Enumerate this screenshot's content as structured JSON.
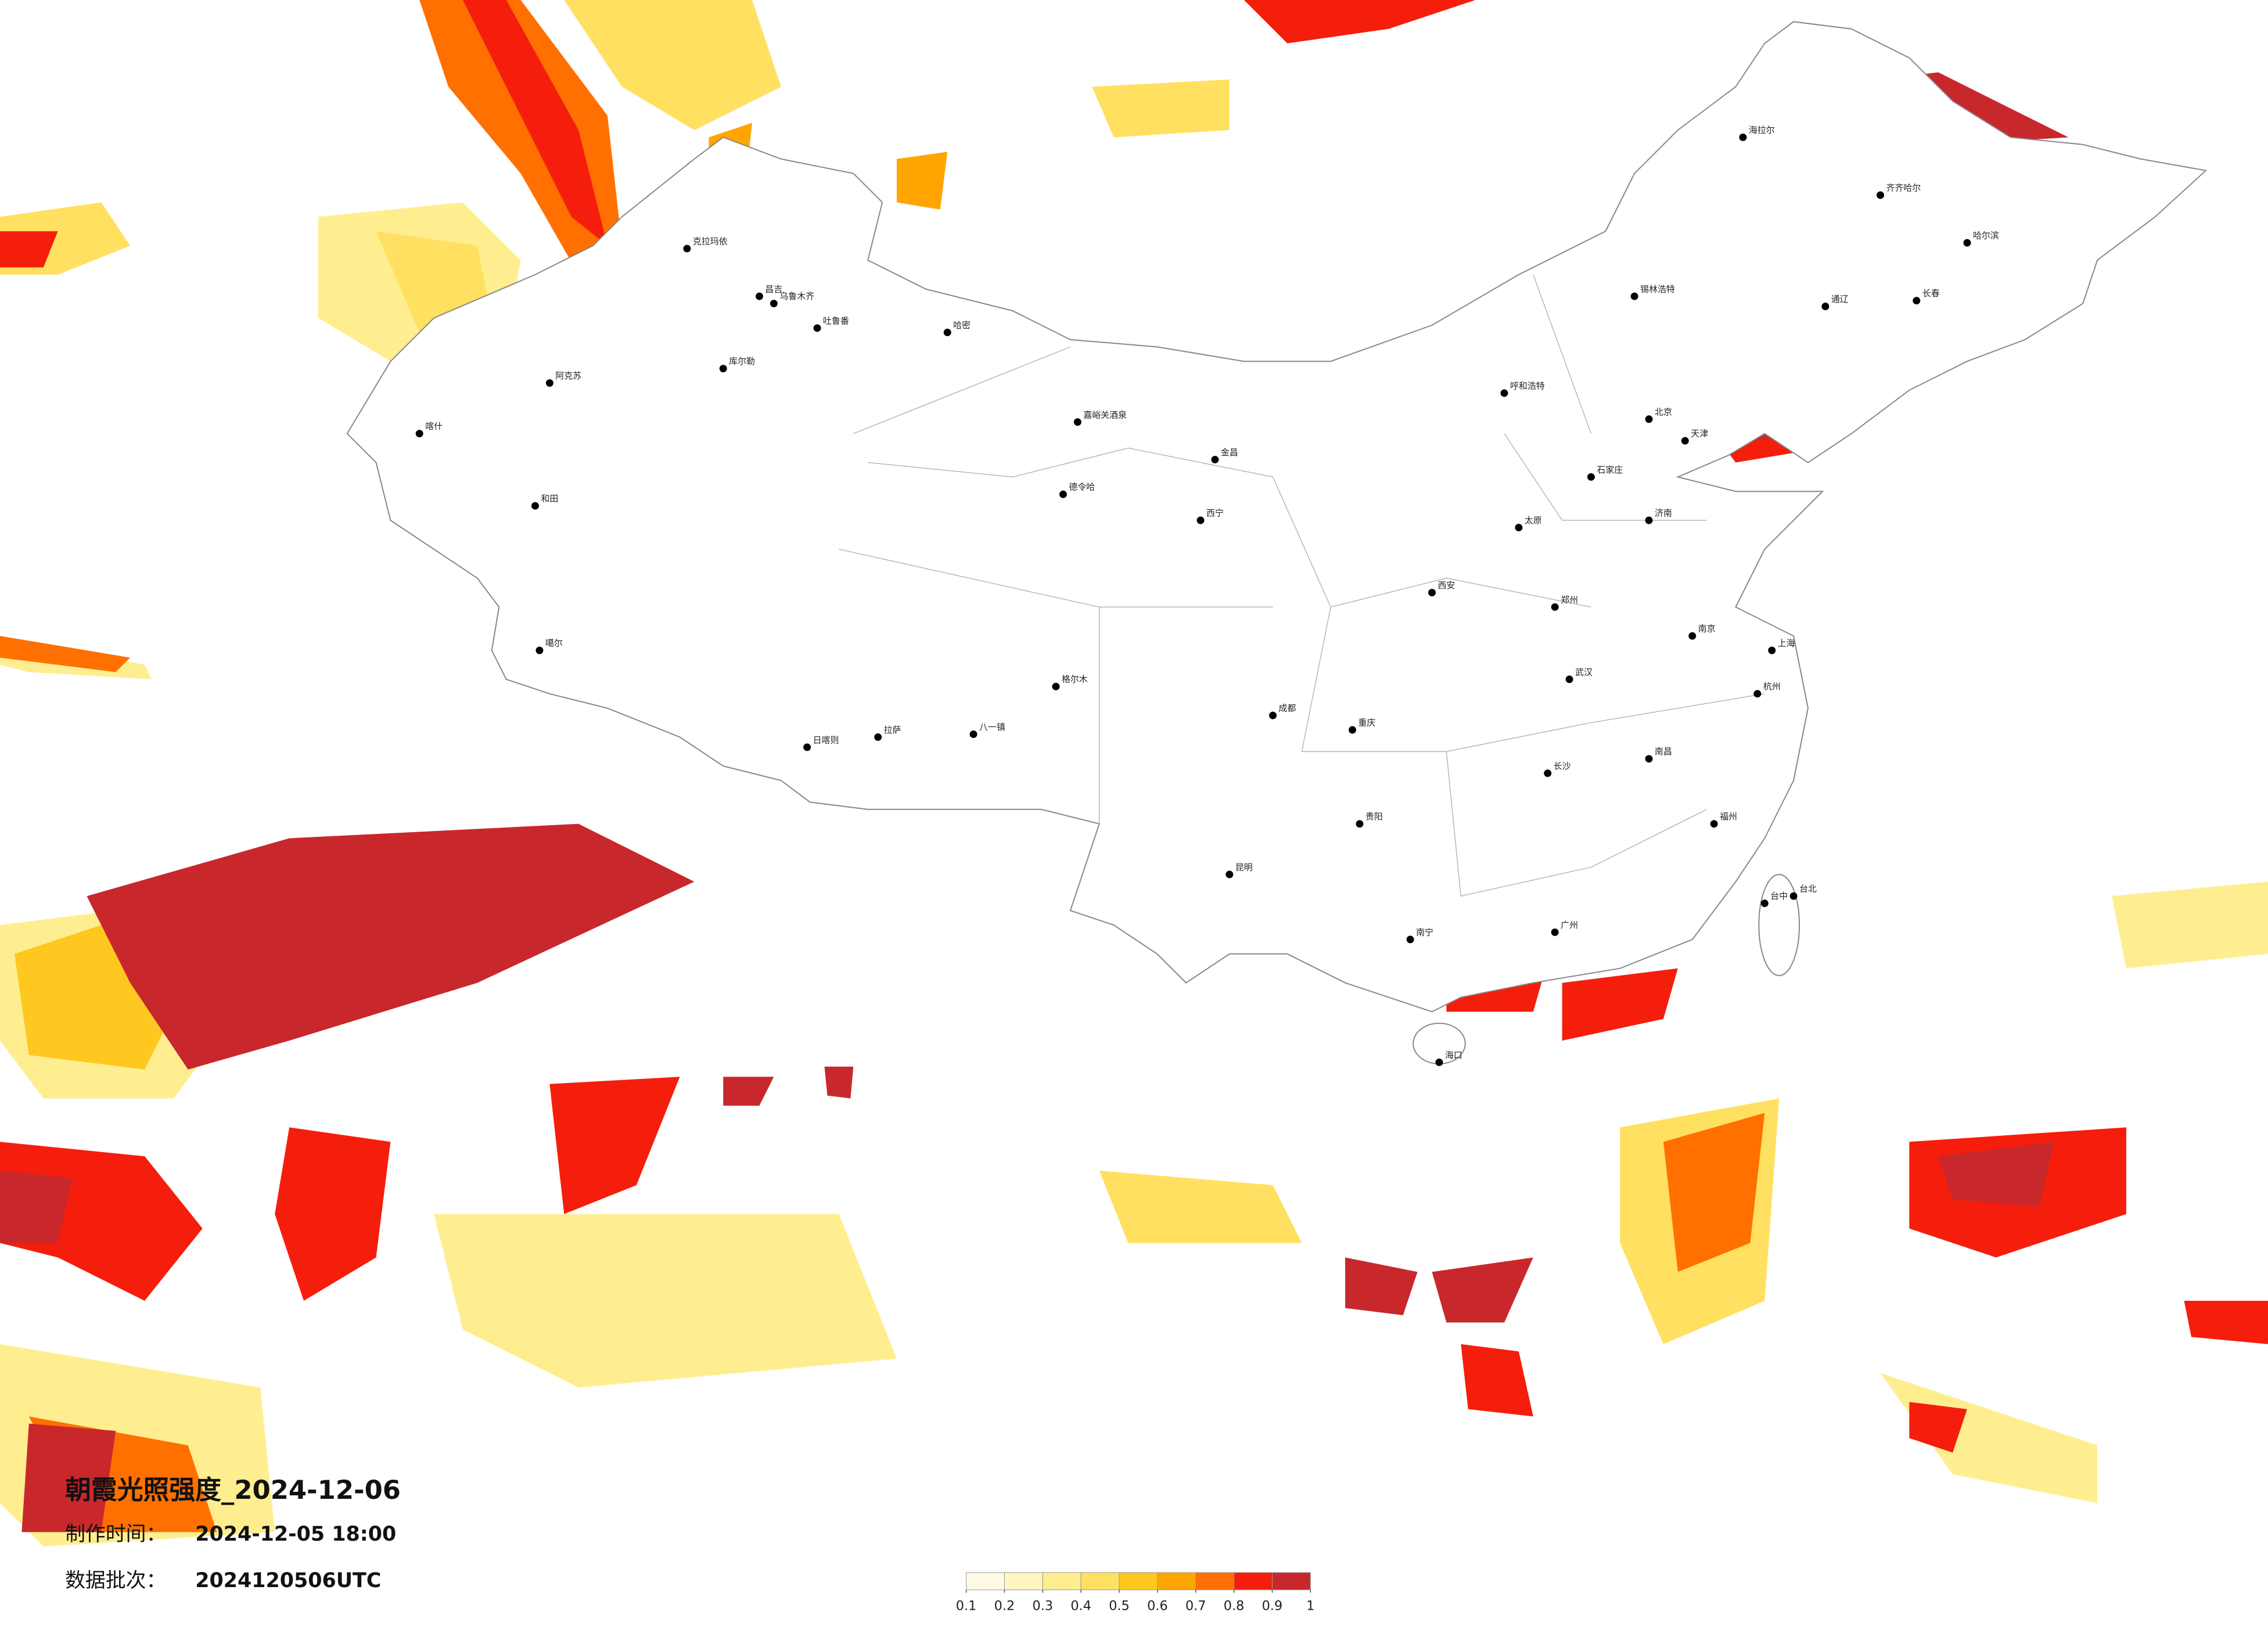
{
  "title": "朝霞光照强度_2024-12-06",
  "production_time_label": "制作时间：",
  "production_time": "2024-12-05 18:00",
  "batch_label": "数据批次：",
  "batch": "2024120506UTC",
  "legend": {
    "colors": [
      "#fffbe6",
      "#fff6c0",
      "#ffee90",
      "#ffe060",
      "#ffc820",
      "#ffa500",
      "#ff7000",
      "#f51e0c",
      "#c8282c"
    ],
    "ticks": [
      0.1,
      0.2,
      0.3,
      0.4,
      0.5,
      0.6,
      0.7,
      0.8,
      0.9,
      1
    ]
  },
  "cities": [
    "克拉玛依",
    "昌吉",
    "乌鲁木齐",
    "吐鲁番",
    "哈密",
    "库尔勒",
    "阿克苏",
    "喀什",
    "和田",
    "噶尔",
    "日喀则",
    "拉萨",
    "八一镇",
    "格尔木",
    "德令哈",
    "嘉峪关酒泉",
    "金昌",
    "西宁",
    "海拉尔",
    "齐齐哈尔",
    "哈尔滨",
    "长春",
    "通辽",
    "锡林浩特",
    "呼和浩特",
    "北京",
    "天津",
    "石家庄",
    "太原",
    "郑州",
    "西安",
    "成都",
    "重庆",
    "贵阳",
    "昆明",
    "南宁",
    "广州",
    "福州",
    "南昌",
    "长沙",
    "武汉",
    "南京",
    "上海",
    "杭州",
    "济南",
    "台北",
    "台中",
    "海口"
  ]
}
